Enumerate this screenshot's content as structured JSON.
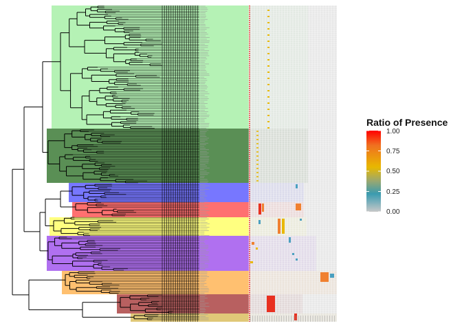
{
  "legend": {
    "title": "Ratio of Presence",
    "ticks": [
      "1.00",
      "0.75",
      "0.50",
      "0.25",
      "0.00"
    ],
    "gradient_colors": [
      "#ff0000",
      "#f07020",
      "#e8b800",
      "#9aa870",
      "#3a9bb0",
      "#c8c8c8"
    ]
  },
  "clade_colors": [
    "#b5f2b5",
    "#5a8f55",
    "#7777ff",
    "#ff7070",
    "#ffff80",
    "#b070f0",
    "#ffc070",
    "#b86060",
    "#e0c878"
  ],
  "heatmap_colors": {
    "background": "#e6e6e6",
    "grid": "#ffffff",
    "red": "#e83020",
    "orange": "#f08030",
    "yellow": "#e8b800",
    "teal": "#4aa0c0",
    "marker_line": "#ee1111"
  }
}
